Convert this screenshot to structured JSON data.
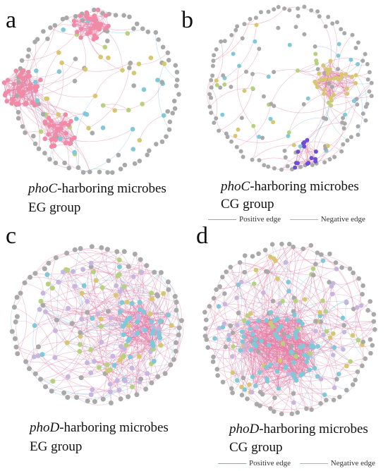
{
  "colors": {
    "positive_edge": "#e67fa5",
    "negative_edge": "#7ec3e3",
    "node_gray": "#a9a9a9",
    "node_yellow": "#d8c771",
    "node_green": "#b7d27e",
    "node_cyan": "#7fc9d8",
    "node_pink": "#f08aa6",
    "node_lavender": "#c7b6e0",
    "node_purple": "#6c4fd6"
  },
  "legend": {
    "positive_label": "Positive edge",
    "negative_label": "Negative edge"
  },
  "panels": [
    {
      "letter": "a",
      "gene_italic": "phoC",
      "caption_rest": "-harboring microbes",
      "group": "EG  group"
    },
    {
      "letter": "b",
      "gene_italic": "phoC",
      "caption_rest": "-harboring microbes",
      "group": "CG  group"
    },
    {
      "letter": "c",
      "gene_italic": "phoD",
      "caption_rest": "-harboring microbes",
      "group": "EG group"
    },
    {
      "letter": "d",
      "gene_italic": "phoD",
      "caption_rest": "-harboring microbes",
      "group": "CG group"
    }
  ]
}
